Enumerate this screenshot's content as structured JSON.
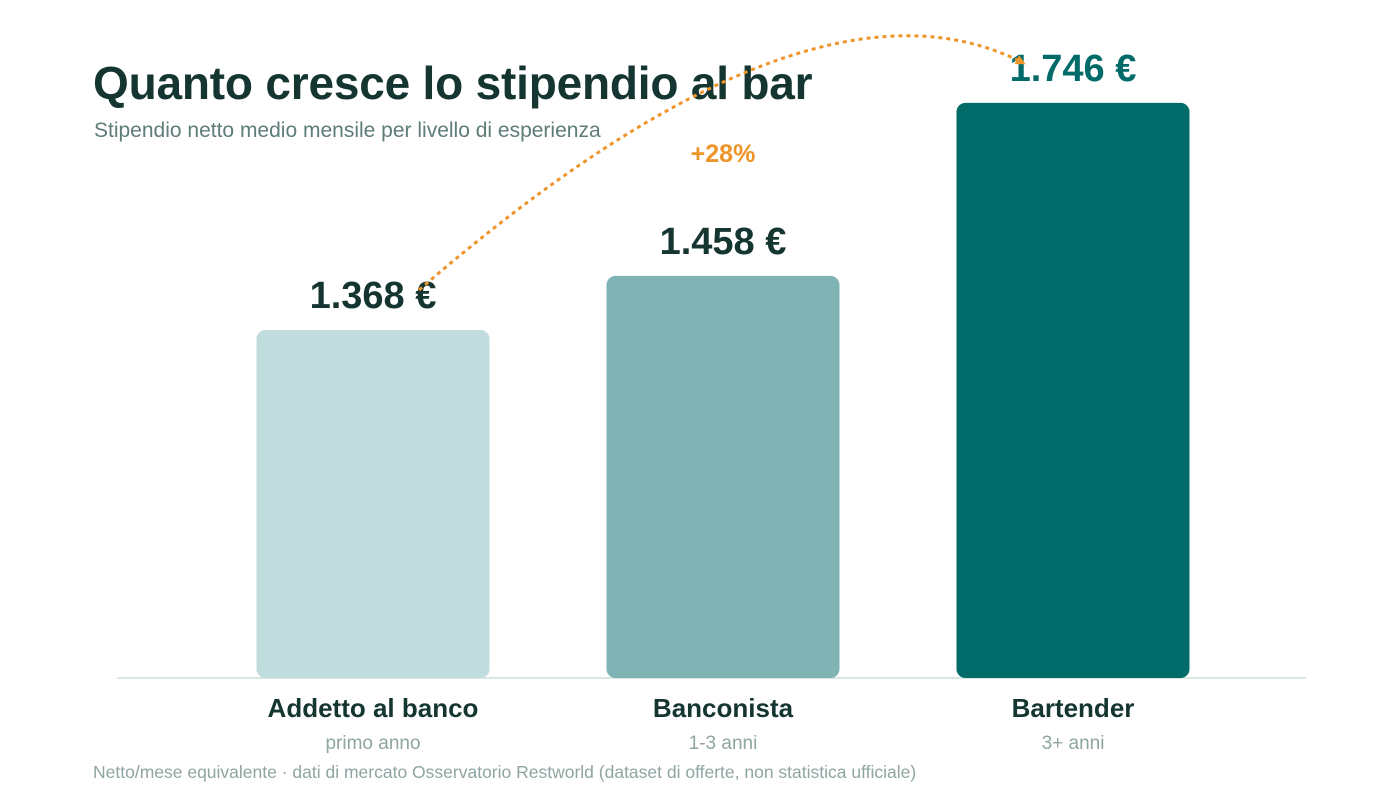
{
  "header": {
    "title": "Quanto cresce lo stipendio al bar",
    "subtitle": "Stipendio netto medio mensile per livello di esperienza"
  },
  "footnote": "Netto/mese equivalente · dati di mercato Osservatorio Restworld (dataset di offerte, non statistica ufficiale)",
  "chart_data": {
    "type": "bar",
    "categories": [
      "Addetto al banco",
      "Banconista",
      "Bartender"
    ],
    "category_sublabels": [
      "primo anno",
      "1-3 anni",
      "3+ anni"
    ],
    "values": [
      1368,
      1458,
      1746
    ],
    "value_labels": [
      "1.368 €",
      "1.458 €",
      "1.746 €"
    ],
    "bar_colors": [
      "#c0dcdc",
      "#80b3b3",
      "#006b69"
    ],
    "value_label_colors": [
      "#143530",
      "#143530",
      "#006b69"
    ],
    "annotation": {
      "text": "+28%",
      "from_category": "Addetto al banco",
      "to_category": "Bartender",
      "color": "#ee952a"
    },
    "grid": false,
    "legend": "none"
  }
}
